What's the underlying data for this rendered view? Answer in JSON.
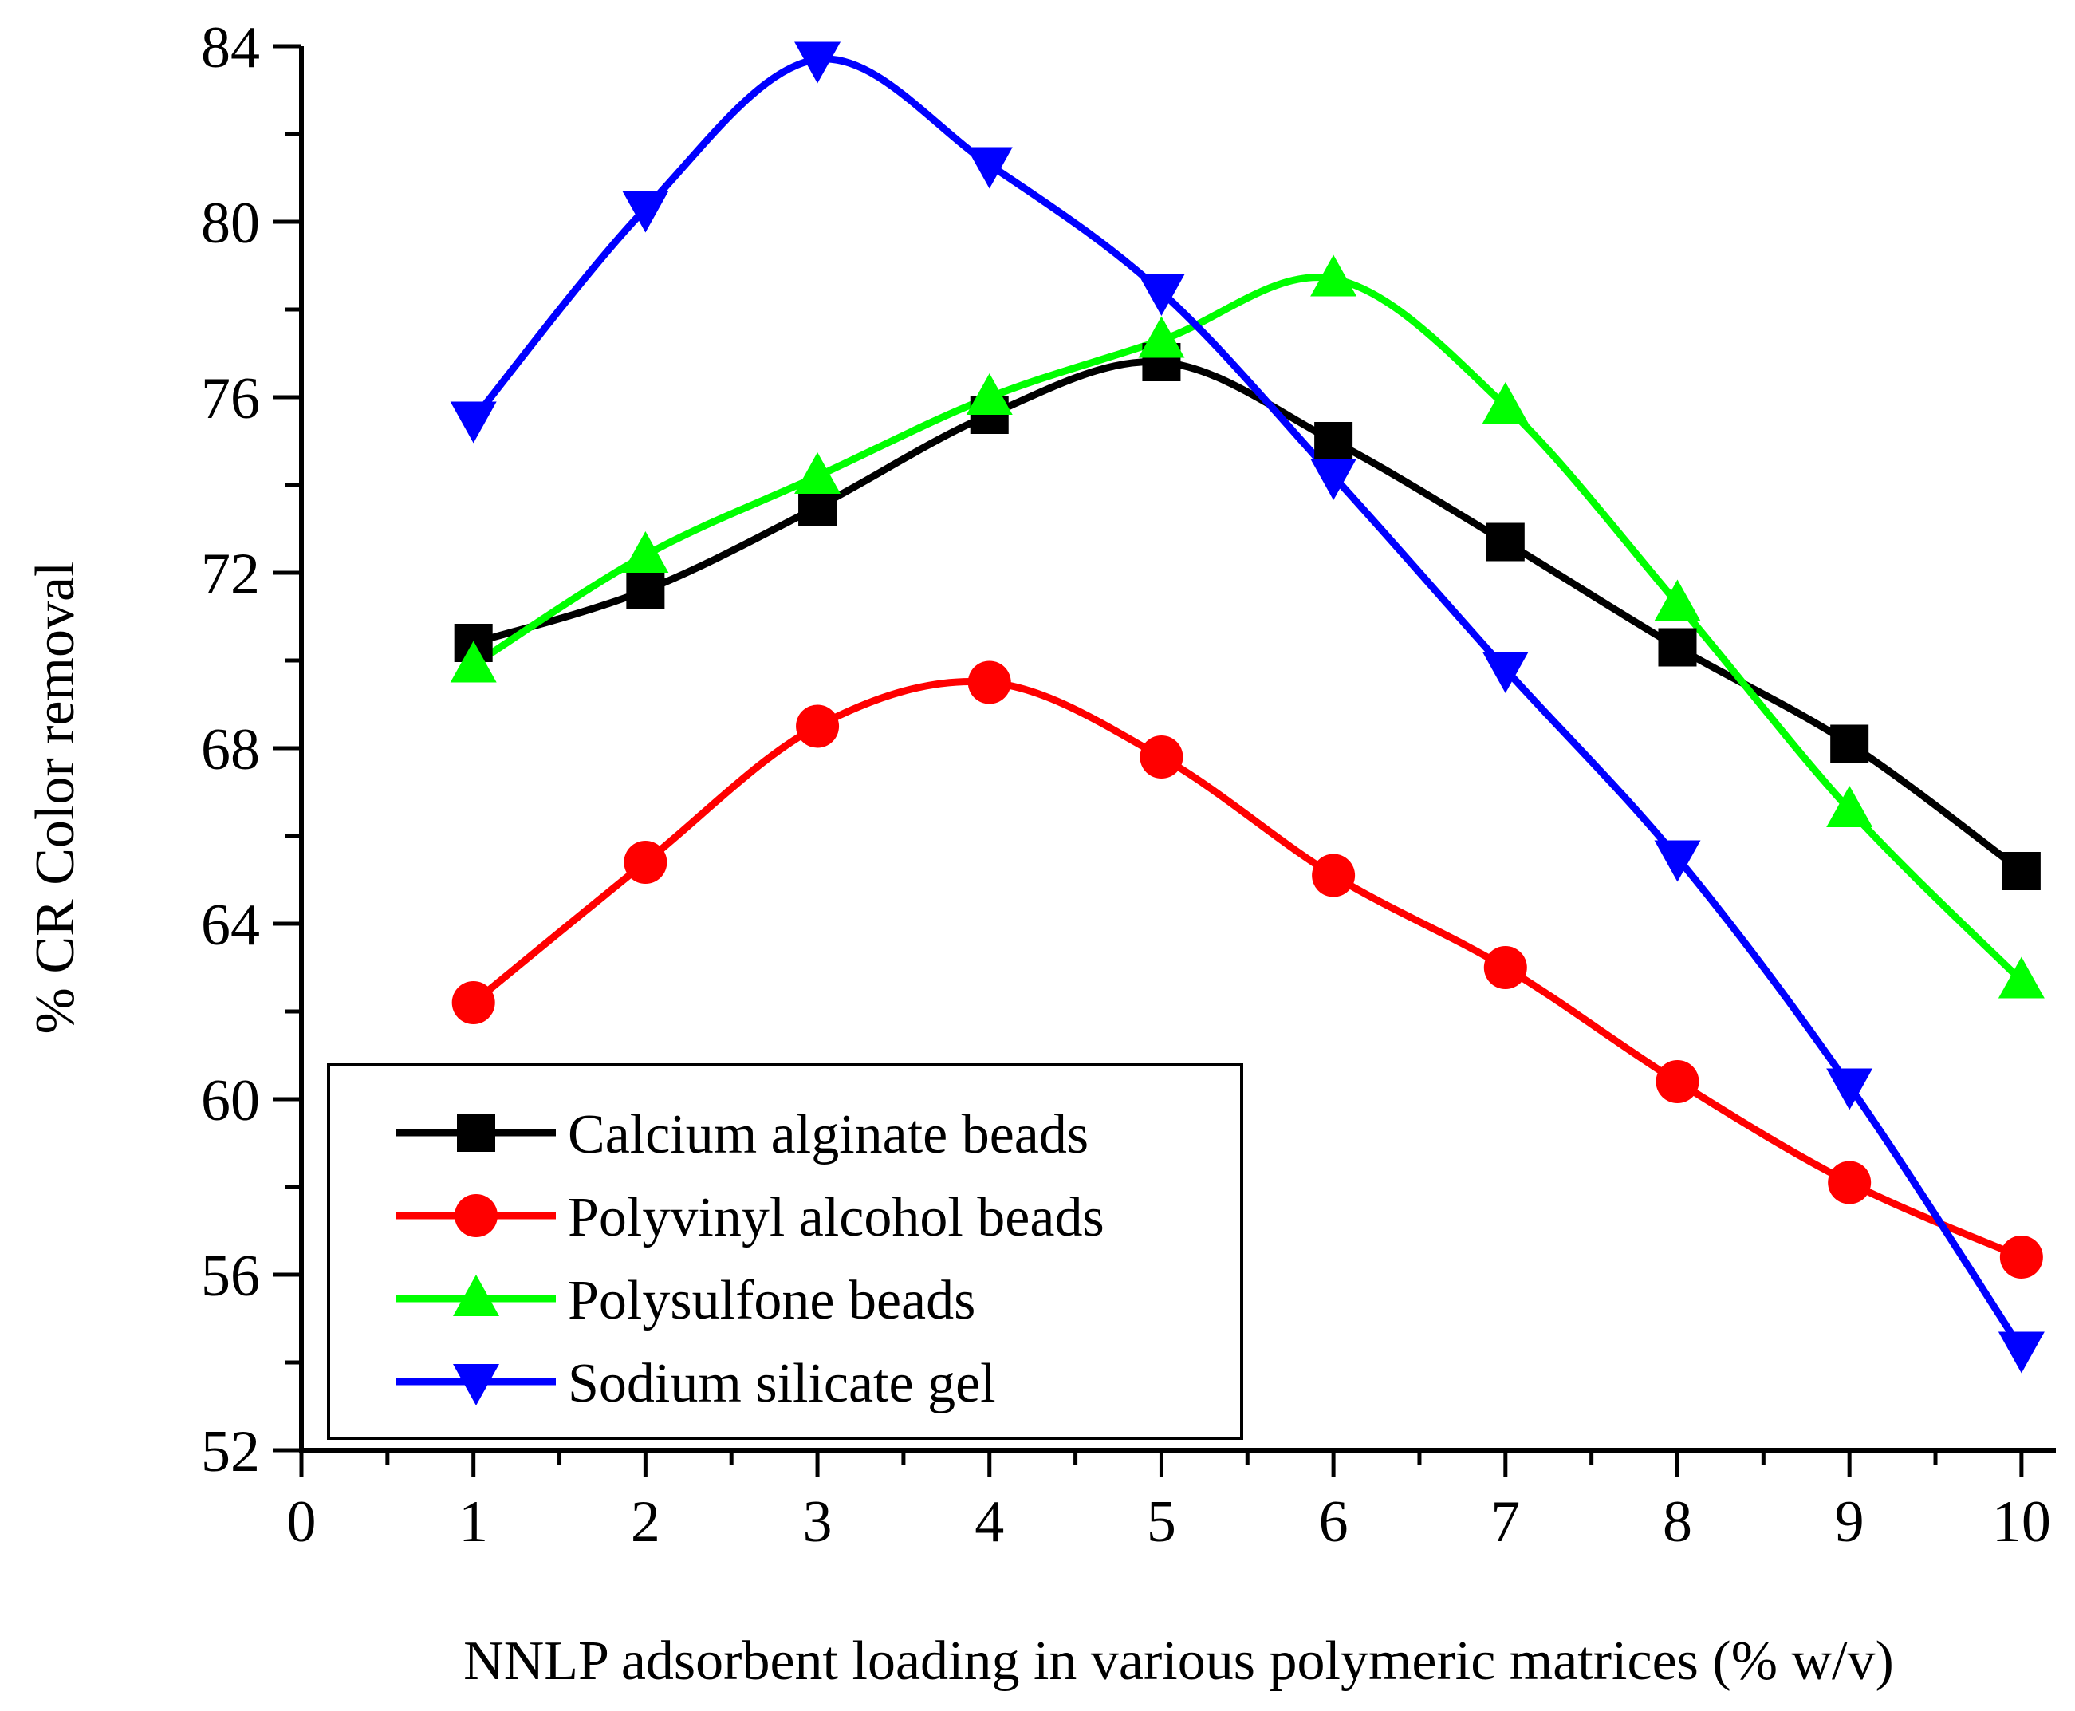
{
  "chart_data": {
    "type": "line",
    "title": "",
    "xlabel": "NNLP adsorbent loading in various polymeric matrices (% w/v)",
    "ylabel": "% CR Color removal",
    "xlim": [
      0,
      10.2
    ],
    "ylim": [
      52,
      84
    ],
    "xticks": [
      0,
      1,
      2,
      3,
      4,
      5,
      6,
      7,
      8,
      9,
      10
    ],
    "yticks": [
      52,
      56,
      60,
      64,
      68,
      72,
      76,
      80,
      84
    ],
    "x": [
      1,
      2,
      3,
      4,
      5,
      6,
      7,
      8,
      9,
      10
    ],
    "legend_position": "bottom-left",
    "series": [
      {
        "name": "Calcium alginate beads",
        "color": "#000000",
        "marker": "square",
        "values": [
          70.4,
          71.6,
          73.5,
          75.6,
          76.8,
          75.0,
          72.7,
          70.3,
          68.1,
          65.2
        ]
      },
      {
        "name": "Polyvinyl alcohol beads",
        "color": "#ff0000",
        "marker": "circle",
        "values": [
          62.2,
          65.4,
          68.5,
          69.5,
          67.8,
          65.1,
          63.0,
          60.4,
          58.1,
          56.4
        ]
      },
      {
        "name": "Polysulfone beads",
        "color": "#00ff00",
        "marker": "triangle-up",
        "values": [
          69.9,
          72.4,
          74.2,
          76.0,
          77.3,
          78.7,
          75.8,
          71.3,
          66.6,
          62.7
        ]
      },
      {
        "name": "Sodium silicate gel",
        "color": "#0000ff",
        "marker": "triangle-down",
        "values": [
          75.5,
          80.3,
          83.7,
          81.3,
          78.4,
          74.2,
          69.8,
          65.5,
          60.3,
          54.3
        ]
      }
    ]
  }
}
